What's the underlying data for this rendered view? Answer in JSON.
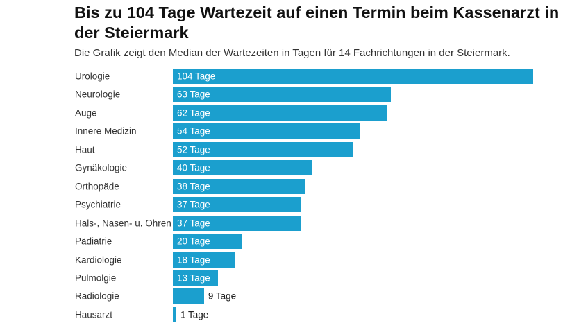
{
  "chart_data": {
    "type": "bar",
    "orientation": "horizontal",
    "title": "Bis zu 104 Tage Wartezeit auf einen Termin beim Kassenarzt in der Steiermark",
    "subtitle": "Die Grafik zeigt den Median der Wartezeiten in Tagen für 14 Fachrichtungen in der Steiermark.",
    "categories": [
      "Urologie",
      "Neurologie",
      "Auge",
      "Innere Medizin",
      "Haut",
      "Gynäkologie",
      "Orthopäde",
      "Psychiatrie",
      "Hals-, Nasen- u. Ohren",
      "Pädiatrie",
      "Kardiologie",
      "Pulmolgie",
      "Radiologie",
      "Hausarzt"
    ],
    "values": [
      104,
      63,
      62,
      54,
      52,
      40,
      38,
      37,
      37,
      20,
      18,
      13,
      9,
      1
    ],
    "data_labels": [
      "104 Tage",
      "63 Tage",
      "62 Tage",
      "54 Tage",
      "52 Tage",
      "40 Tage",
      "38 Tage",
      "37 Tage",
      "37 Tage",
      "20 Tage",
      "18 Tage",
      "13 Tage",
      "9 Tage",
      "1 Tage"
    ],
    "xlim": [
      0,
      104
    ],
    "grid": false,
    "bar_color": "#1b9fce"
  }
}
